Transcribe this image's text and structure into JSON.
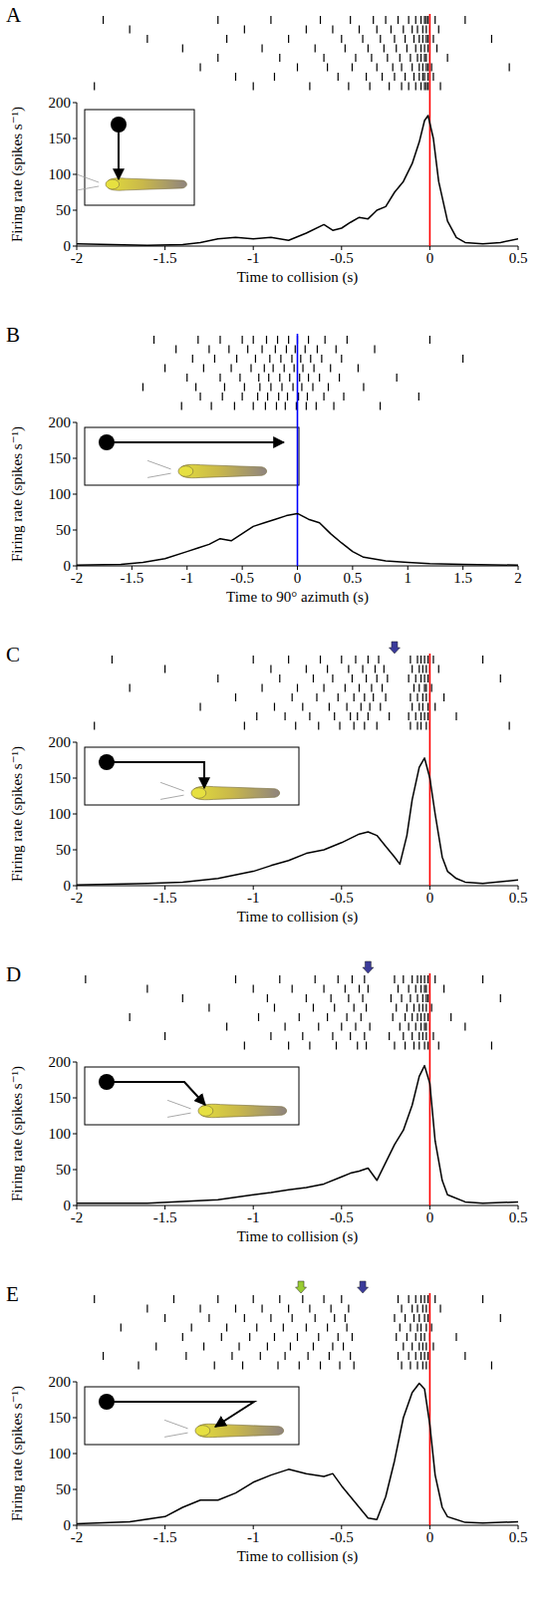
{
  "chart_data": [
    {
      "type": "line",
      "panel": "A",
      "x_label": "Time to collision (s)",
      "y_label": "Firing rate (spikes s⁻¹)",
      "xlim": [
        -2,
        0.5
      ],
      "ylim": [
        0,
        200
      ],
      "xticks": [
        -2,
        -1.5,
        -1,
        -0.5,
        0,
        0.5
      ],
      "yticks": [
        0,
        50,
        100,
        150,
        200
      ],
      "color": "#000000",
      "x": [
        -2,
        -1.8,
        -1.6,
        -1.4,
        -1.3,
        -1.2,
        -1.1,
        -1,
        -0.9,
        -0.8,
        -0.7,
        -0.6,
        -0.55,
        -0.5,
        -0.45,
        -0.4,
        -0.35,
        -0.3,
        -0.25,
        -0.2,
        -0.15,
        -0.1,
        -0.06,
        -0.03,
        -0.01,
        0.02,
        0.05,
        0.1,
        0.15,
        0.2,
        0.3,
        0.4,
        0.5
      ],
      "values": [
        3,
        2,
        1,
        2,
        5,
        10,
        12,
        10,
        12,
        8,
        18,
        30,
        22,
        25,
        33,
        40,
        38,
        50,
        55,
        75,
        90,
        115,
        145,
        175,
        182,
        150,
        90,
        35,
        12,
        5,
        3,
        5,
        10
      ],
      "reference_line": {
        "x": 0,
        "color": "#ff0000"
      },
      "markers": [],
      "raster": [
        [
          -1.85,
          -1.2,
          -0.9,
          -0.62,
          -0.45,
          -0.32,
          -0.25,
          -0.18,
          -0.12,
          -0.08,
          -0.05,
          -0.03,
          -0.02,
          -0.01,
          0.03,
          0.2
        ],
        [
          -1.7,
          -1.05,
          -0.7,
          -0.55,
          -0.4,
          -0.3,
          -0.22,
          -0.15,
          -0.1,
          -0.07,
          -0.04,
          -0.02,
          0,
          0.05
        ],
        [
          -1.6,
          -1.15,
          -0.8,
          -0.5,
          -0.38,
          -0.28,
          -0.2,
          -0.14,
          -0.09,
          -0.06,
          -0.04,
          -0.02,
          -0.01,
          0.02,
          0.35
        ],
        [
          -1.4,
          -0.95,
          -0.65,
          -0.48,
          -0.35,
          -0.26,
          -0.19,
          -0.13,
          -0.08,
          -0.05,
          -0.03,
          -0.01,
          0.04
        ],
        [
          -1.2,
          -0.85,
          -0.6,
          -0.42,
          -0.33,
          -0.24,
          -0.17,
          -0.11,
          -0.07,
          -0.05,
          -0.03,
          -0.02,
          0,
          0.1
        ],
        [
          -1.3,
          -0.75,
          -0.58,
          -0.44,
          -0.3,
          -0.21,
          -0.16,
          -0.1,
          -0.06,
          -0.04,
          -0.02,
          -0.01,
          0.01,
          0.45
        ],
        [
          -1.1,
          -0.88,
          -0.52,
          -0.36,
          -0.27,
          -0.2,
          -0.14,
          -0.09,
          -0.06,
          -0.04,
          -0.03,
          -0.01,
          0.02
        ],
        [
          -1.9,
          -1.0,
          -0.68,
          -0.46,
          -0.34,
          -0.23,
          -0.16,
          -0.12,
          -0.08,
          -0.05,
          -0.03,
          -0.02,
          -0.01,
          0.06
        ]
      ]
    },
    {
      "type": "line",
      "panel": "B",
      "x_label": "Time to 90° azimuth (s)",
      "y_label": "Firing rate (spikes s⁻¹)",
      "xlim": [
        -2,
        2
      ],
      "ylim": [
        0,
        200
      ],
      "xticks": [
        -2,
        -1.5,
        -1,
        -0.5,
        0,
        0.5,
        1,
        1.5,
        2
      ],
      "yticks": [
        0,
        50,
        100,
        150,
        200
      ],
      "color": "#000000",
      "x": [
        -2,
        -1.6,
        -1.4,
        -1.2,
        -1,
        -0.9,
        -0.8,
        -0.7,
        -0.6,
        -0.5,
        -0.4,
        -0.3,
        -0.2,
        -0.1,
        0,
        0.1,
        0.2,
        0.3,
        0.4,
        0.5,
        0.6,
        0.8,
        1,
        1.2,
        1.5,
        2
      ],
      "values": [
        1,
        2,
        5,
        10,
        20,
        25,
        30,
        38,
        35,
        45,
        55,
        60,
        65,
        70,
        73,
        65,
        60,
        45,
        32,
        20,
        12,
        7,
        5,
        3,
        2,
        1
      ],
      "reference_line": {
        "x": 0,
        "color": "#0000ff"
      },
      "markers": [],
      "raster": [
        [
          -1.3,
          -0.9,
          -0.7,
          -0.5,
          -0.4,
          -0.28,
          -0.18,
          -0.08,
          0,
          0.1,
          0.25,
          0.45,
          1.2
        ],
        [
          -1.1,
          -0.8,
          -0.62,
          -0.45,
          -0.32,
          -0.2,
          -0.1,
          -0.02,
          0.07,
          0.18,
          0.35,
          0.7
        ],
        [
          -0.95,
          -0.75,
          -0.55,
          -0.38,
          -0.25,
          -0.15,
          -0.05,
          0.03,
          0.12,
          0.22,
          0.4,
          1.5
        ],
        [
          -1.2,
          -0.85,
          -0.6,
          -0.42,
          -0.3,
          -0.22,
          -0.12,
          -0.03,
          0.05,
          0.15,
          0.3,
          0.55
        ],
        [
          -1.0,
          -0.7,
          -0.52,
          -0.35,
          -0.26,
          -0.16,
          -0.07,
          0.02,
          0.1,
          0.2,
          0.38,
          0.9
        ],
        [
          -1.4,
          -0.92,
          -0.66,
          -0.48,
          -0.34,
          -0.24,
          -0.14,
          -0.04,
          0.04,
          0.14,
          0.28,
          0.6
        ],
        [
          -0.88,
          -0.68,
          -0.5,
          -0.36,
          -0.27,
          -0.17,
          -0.09,
          0.01,
          0.09,
          0.24,
          0.42,
          1.1
        ],
        [
          -1.05,
          -0.78,
          -0.57,
          -0.4,
          -0.29,
          -0.19,
          -0.11,
          -0.01,
          0.08,
          0.17,
          0.33,
          0.75
        ]
      ]
    },
    {
      "type": "line",
      "panel": "C",
      "x_label": "Time to collision (s)",
      "y_label": "Firing rate (spikes s⁻¹)",
      "xlim": [
        -2,
        0.5
      ],
      "ylim": [
        0,
        200
      ],
      "xticks": [
        -2,
        -1.5,
        -1,
        -0.5,
        0,
        0.5
      ],
      "yticks": [
        0,
        50,
        100,
        150,
        200
      ],
      "color": "#000000",
      "x": [
        -2,
        -1.6,
        -1.4,
        -1.2,
        -1,
        -0.9,
        -0.8,
        -0.7,
        -0.6,
        -0.5,
        -0.4,
        -0.35,
        -0.3,
        -0.25,
        -0.2,
        -0.17,
        -0.13,
        -0.1,
        -0.06,
        -0.03,
        0,
        0.03,
        0.07,
        0.1,
        0.15,
        0.2,
        0.3,
        0.5
      ],
      "values": [
        1,
        3,
        5,
        10,
        20,
        28,
        35,
        45,
        50,
        60,
        72,
        75,
        70,
        55,
        40,
        30,
        70,
        120,
        165,
        178,
        150,
        100,
        40,
        20,
        10,
        5,
        3,
        8
      ],
      "reference_line": {
        "x": 0,
        "color": "#ff0000"
      },
      "markers": [
        {
          "x": -0.2,
          "color": "#3b3b9a"
        }
      ],
      "raster": [
        [
          -1.8,
          -1.0,
          -0.8,
          -0.62,
          -0.5,
          -0.42,
          -0.35,
          -0.29,
          -0.11,
          -0.07,
          -0.05,
          -0.03,
          -0.01,
          0.02,
          0.3
        ],
        [
          -1.5,
          -0.9,
          -0.7,
          -0.58,
          -0.46,
          -0.38,
          -0.31,
          -0.26,
          -0.1,
          -0.06,
          -0.04,
          -0.02,
          0,
          0.05
        ],
        [
          -1.2,
          -0.85,
          -0.66,
          -0.55,
          -0.44,
          -0.36,
          -0.3,
          -0.24,
          -0.12,
          -0.08,
          -0.05,
          -0.03,
          -0.01,
          0.4
        ],
        [
          -1.7,
          -0.95,
          -0.75,
          -0.6,
          -0.48,
          -0.4,
          -0.33,
          -0.27,
          -0.09,
          -0.06,
          -0.03,
          -0.02,
          0.01
        ],
        [
          -1.1,
          -0.78,
          -0.64,
          -0.52,
          -0.43,
          -0.37,
          -0.32,
          -0.25,
          -0.11,
          -0.07,
          -0.04,
          -0.02,
          0,
          0.08
        ],
        [
          -1.3,
          -0.88,
          -0.72,
          -0.57,
          -0.47,
          -0.39,
          -0.34,
          -0.28,
          -0.1,
          -0.06,
          -0.04,
          -0.01,
          0.03
        ],
        [
          -0.98,
          -0.82,
          -0.68,
          -0.54,
          -0.45,
          -0.41,
          -0.35,
          -0.23,
          -0.12,
          -0.08,
          -0.05,
          -0.03,
          -0.01,
          0.15
        ],
        [
          -1.9,
          -1.05,
          -0.76,
          -0.63,
          -0.51,
          -0.43,
          -0.37,
          -0.3,
          -0.11,
          -0.07,
          -0.05,
          -0.02,
          0,
          0.45
        ]
      ]
    },
    {
      "type": "line",
      "panel": "D",
      "x_label": "Time to collision (s)",
      "y_label": "Firing rate (spikes s⁻¹)",
      "xlim": [
        -2,
        0.5
      ],
      "ylim": [
        0,
        200
      ],
      "xticks": [
        -2,
        -1.5,
        -1,
        -0.5,
        0,
        0.5
      ],
      "yticks": [
        0,
        50,
        100,
        150,
        200
      ],
      "color": "#000000",
      "x": [
        -2,
        -1.6,
        -1.2,
        -1,
        -0.9,
        -0.8,
        -0.7,
        -0.6,
        -0.5,
        -0.45,
        -0.4,
        -0.35,
        -0.3,
        -0.25,
        -0.2,
        -0.15,
        -0.1,
        -0.06,
        -0.03,
        0,
        0.03,
        0.07,
        0.1,
        0.2,
        0.3,
        0.5
      ],
      "values": [
        3,
        3,
        8,
        15,
        18,
        22,
        25,
        30,
        40,
        45,
        48,
        52,
        35,
        60,
        85,
        105,
        140,
        180,
        195,
        170,
        90,
        35,
        15,
        5,
        3,
        5
      ],
      "reference_line": {
        "x": 0,
        "color": "#ff0000"
      },
      "markers": [
        {
          "x": -0.35,
          "color": "#3b3b9a"
        }
      ],
      "raster": [
        [
          -1.95,
          -1.1,
          -0.85,
          -0.65,
          -0.52,
          -0.44,
          -0.37,
          -0.2,
          -0.15,
          -0.1,
          -0.07,
          -0.05,
          -0.03,
          -0.01,
          0.03,
          0.3
        ],
        [
          -1.6,
          -1.0,
          -0.78,
          -0.6,
          -0.48,
          -0.4,
          -0.35,
          -0.18,
          -0.12,
          -0.08,
          -0.05,
          -0.03,
          -0.02,
          0,
          0.08
        ],
        [
          -1.4,
          -0.92,
          -0.7,
          -0.56,
          -0.46,
          -0.38,
          -0.22,
          -0.16,
          -0.11,
          -0.07,
          -0.04,
          -0.02,
          -0.01,
          0.4
        ],
        [
          -1.25,
          -0.88,
          -0.66,
          -0.54,
          -0.43,
          -0.36,
          -0.19,
          -0.13,
          -0.09,
          -0.06,
          -0.04,
          -0.02,
          0.01
        ],
        [
          -1.7,
          -0.97,
          -0.74,
          -0.58,
          -0.47,
          -0.39,
          -0.21,
          -0.14,
          -0.1,
          -0.07,
          -0.05,
          -0.03,
          -0.01,
          0.12
        ],
        [
          -1.15,
          -0.82,
          -0.63,
          -0.5,
          -0.42,
          -0.34,
          -0.17,
          -0.12,
          -0.08,
          -0.05,
          -0.03,
          -0.02,
          0,
          0.2
        ],
        [
          -1.5,
          -0.9,
          -0.72,
          -0.55,
          -0.45,
          -0.37,
          -0.23,
          -0.15,
          -0.1,
          -0.06,
          -0.04,
          -0.02,
          0.02
        ],
        [
          -1.05,
          -0.8,
          -0.68,
          -0.53,
          -0.41,
          -0.36,
          -0.2,
          -0.14,
          -0.09,
          -0.06,
          -0.03,
          -0.01,
          0.05,
          0.35
        ]
      ]
    },
    {
      "type": "line",
      "panel": "E",
      "x_label": "Time to collision (s)",
      "y_label": "Firing rate (spikes s⁻¹)",
      "xlim": [
        -2,
        0.5
      ],
      "ylim": [
        0,
        200
      ],
      "xticks": [
        -2,
        -1.5,
        -1,
        -0.5,
        0,
        0.5
      ],
      "yticks": [
        0,
        50,
        100,
        150,
        200
      ],
      "color": "#000000",
      "x": [
        -2,
        -1.7,
        -1.5,
        -1.4,
        -1.3,
        -1.2,
        -1.1,
        -1,
        -0.9,
        -0.8,
        -0.7,
        -0.6,
        -0.55,
        -0.5,
        -0.45,
        -0.4,
        -0.35,
        -0.3,
        -0.25,
        -0.2,
        -0.15,
        -0.1,
        -0.06,
        -0.03,
        0,
        0.03,
        0.07,
        0.1,
        0.2,
        0.3,
        0.5
      ],
      "values": [
        2,
        5,
        12,
        25,
        35,
        35,
        45,
        60,
        70,
        78,
        72,
        68,
        72,
        55,
        40,
        25,
        10,
        8,
        40,
        90,
        150,
        185,
        198,
        190,
        140,
        70,
        25,
        12,
        4,
        3,
        5
      ],
      "reference_line": {
        "x": 0,
        "color": "#ff0000"
      },
      "markers": [
        {
          "x": -0.73,
          "color": "#99cc33"
        },
        {
          "x": -0.38,
          "color": "#3b3b9a"
        }
      ],
      "raster": [
        [
          -1.9,
          -1.45,
          -1.2,
          -1.0,
          -0.85,
          -0.72,
          -0.6,
          -0.5,
          -0.18,
          -0.12,
          -0.08,
          -0.05,
          -0.03,
          -0.01,
          0.03,
          0.3
        ],
        [
          -1.6,
          -1.3,
          -1.1,
          -0.95,
          -0.8,
          -0.68,
          -0.56,
          -0.46,
          -0.16,
          -0.1,
          -0.07,
          -0.04,
          -0.02,
          0,
          0.06
        ],
        [
          -1.5,
          -1.25,
          -1.05,
          -0.9,
          -0.78,
          -0.65,
          -0.54,
          -0.48,
          -0.2,
          -0.14,
          -0.09,
          -0.06,
          -0.03,
          -0.01,
          0.4
        ],
        [
          -1.75,
          -1.35,
          -1.15,
          -0.98,
          -0.83,
          -0.7,
          -0.58,
          -0.47,
          -0.17,
          -0.11,
          -0.07,
          -0.05,
          -0.02,
          0.01
        ],
        [
          -1.4,
          -1.18,
          -1.02,
          -0.88,
          -0.75,
          -0.63,
          -0.52,
          -0.44,
          -0.19,
          -0.13,
          -0.08,
          -0.05,
          -0.03,
          0,
          0.15
        ],
        [
          -1.55,
          -1.28,
          -1.08,
          -0.92,
          -0.79,
          -0.66,
          -0.55,
          -0.49,
          -0.15,
          -0.1,
          -0.06,
          -0.04,
          -0.02,
          0.02
        ],
        [
          -1.85,
          -1.38,
          -1.12,
          -0.96,
          -0.82,
          -0.69,
          -0.57,
          -0.45,
          -0.18,
          -0.12,
          -0.08,
          -0.05,
          -0.03,
          -0.01,
          0.2
        ],
        [
          -1.65,
          -1.22,
          -1.06,
          -0.86,
          -0.74,
          -0.62,
          -0.51,
          -0.43,
          -0.16,
          -0.11,
          -0.07,
          -0.04,
          -0.02,
          0,
          0.35
        ]
      ]
    }
  ]
}
